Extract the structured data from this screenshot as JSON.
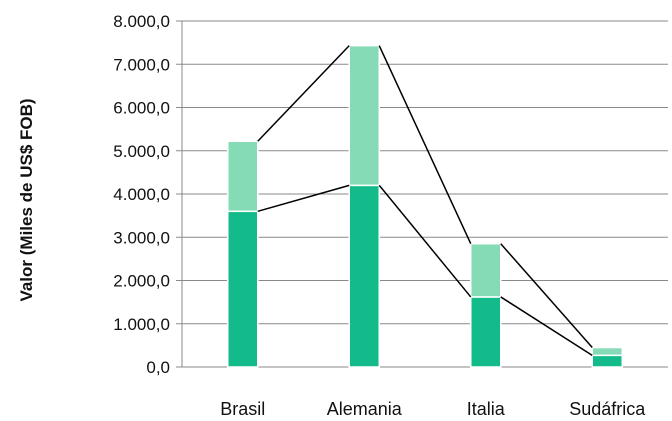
{
  "chart_data": {
    "type": "bar",
    "stacked": true,
    "title": "",
    "xlabel": "",
    "ylabel": "Valor (Miles de US$ FOB)",
    "categories": [
      "Brasil",
      "Alemania",
      "Italia",
      "Sudáfrica"
    ],
    "series": [
      {
        "values": [
          3600,
          4200,
          1620,
          270
        ],
        "color": "#13bb8a"
      },
      {
        "values": [
          1620,
          3230,
          1230,
          180
        ],
        "color": "#86dbb7"
      }
    ],
    "ylim": [
      0,
      8000
    ],
    "yticks": [
      0,
      1000,
      2000,
      3000,
      4000,
      5000,
      6000,
      7000,
      8000
    ],
    "ytick_labels": [
      "0,0",
      "1.000,0",
      "2.000,0",
      "3.000,0",
      "4.000,0",
      "5.000,0",
      "6.000,0",
      "7.000,0",
      "8.000,0"
    ],
    "grid": true,
    "series_lines": true,
    "colors": {
      "grid": "#8a8a8a",
      "series_line": "#000000"
    }
  }
}
